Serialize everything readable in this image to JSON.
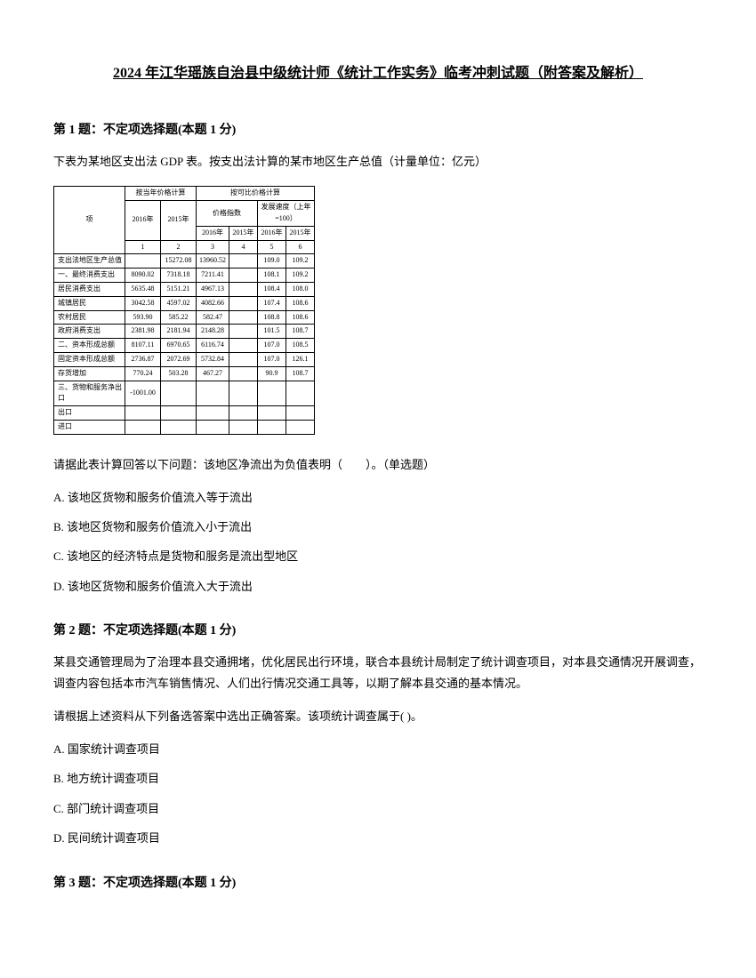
{
  "title": "2024 年江华瑶族自治县中级统计师《统计工作实务》临考冲刺试题（附答案及解析）",
  "q1": {
    "header": "第 1 题：不定项选择题(本题 1 分)",
    "text": "下表为某地区支出法 GDP 表。按支出法计算的某市地区生产总值（计量单位：亿元）",
    "table": {
      "header_row1": [
        "",
        "按当年价格计算",
        "按可比价格计算"
      ],
      "header_row2": [
        "",
        "2016年",
        "2015年",
        "价格指数",
        "发展速度（上年=100）"
      ],
      "header_row3": [
        "项",
        "",
        "",
        "2016年",
        "2015年",
        "2016年",
        "2015年"
      ],
      "header_row4": [
        "",
        "1",
        "2",
        "3",
        "4",
        "5",
        "6"
      ],
      "rows": [
        [
          "支出法地区生产总值",
          "",
          "15272.08",
          "13960.52",
          "",
          "109.0",
          "109.2"
        ],
        [
          "一、最终消费支出",
          "8090.02",
          "7318.18",
          "7211.41",
          "",
          "108.1",
          "109.2"
        ],
        [
          "  居民消费支出",
          "5635.48",
          "5151.21",
          "4967.13",
          "",
          "108.4",
          "108.0"
        ],
        [
          "  城镇居民",
          "3042.58",
          "4597.02",
          "4082.66",
          "",
          "107.4",
          "108.6"
        ],
        [
          "  农村居民",
          "593.90",
          "585.22",
          "582.47",
          "",
          "108.8",
          "108.6"
        ],
        [
          "  政府消费支出",
          "2381.98",
          "2181.94",
          "2148.28",
          "",
          "101.5",
          "108.7"
        ],
        [
          "二、资本形成总额",
          "8107.11",
          "6970.65",
          "6116.74",
          "",
          "107.0",
          "108.5"
        ],
        [
          "  固定资本形成总额",
          "2736.87",
          "2072.69",
          "5732.84",
          "",
          "107.0",
          "126.1"
        ],
        [
          "  存货增加",
          "770.24",
          "503.28",
          "467.27",
          "",
          "90.9",
          "108.7"
        ],
        [
          "三、货物和服务净出口",
          "-1001.00",
          "",
          "",
          "",
          "",
          ""
        ],
        [
          "出口",
          "",
          "",
          "",
          "",
          "",
          ""
        ],
        [
          "进口",
          "",
          "",
          "",
          "",
          "",
          ""
        ]
      ]
    },
    "sub_question": "请据此表计算回答以下问题：该地区净流出为负值表明（　　）。（单选题）",
    "options": [
      "A. 该地区货物和服务价值流入等于流出",
      "B. 该地区货物和服务价值流入小于流出",
      "C. 该地区的经济特点是货物和服务是流出型地区",
      "D. 该地区货物和服务价值流入大于流出"
    ]
  },
  "q2": {
    "header": "第 2 题：不定项选择题(本题 1 分)",
    "text": "某县交通管理局为了治理本县交通拥堵，优化居民出行环境，联合本县统计局制定了统计调查项目，对本县交通情况开展调查，调查内容包括本市汽车销售情况、人们出行情况交通工具等，以期了解本县交通的基本情况。",
    "sub_question": "请根据上述资料从下列备选答案中选出正确答案。该项统计调查属于( )。",
    "options": [
      "A. 国家统计调查项目",
      "B. 地方统计调查项目",
      "C. 部门统计调查项目",
      "D. 民间统计调查项目"
    ]
  },
  "q3": {
    "header": "第 3 题：不定项选择题(本题 1 分)"
  }
}
